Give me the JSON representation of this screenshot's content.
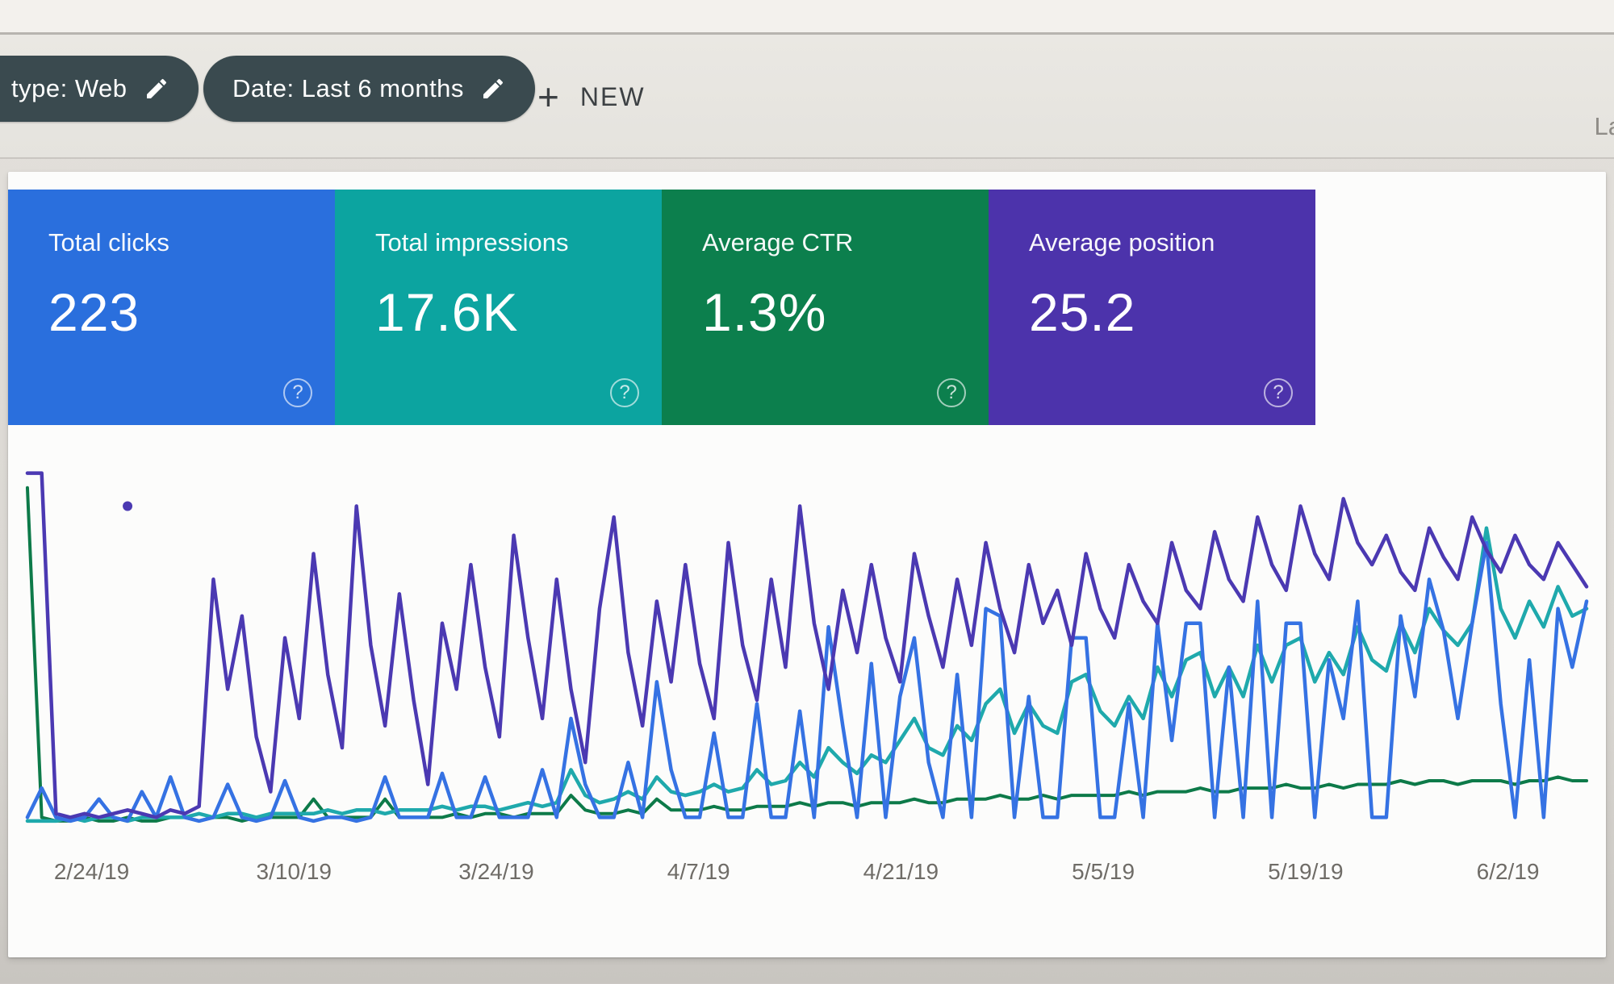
{
  "ui": {
    "plus_glyph": "+",
    "help_glyph": "?"
  },
  "filter_bar": {
    "chips": [
      {
        "label": "type: Web"
      },
      {
        "label": "Date: Last 6 months"
      }
    ],
    "new_button_label": "NEW",
    "right_truncated_text": "La"
  },
  "summary_cards": [
    {
      "id": "total-clicks",
      "label": "Total clicks",
      "value": "223",
      "color": "#2a6fdd"
    },
    {
      "id": "total-impressions",
      "label": "Total impressions",
      "value": "17.6K",
      "color": "#0ca4a0"
    },
    {
      "id": "average-ctr",
      "label": "Average CTR",
      "value": "1.3%",
      "color": "#0c7f4d"
    },
    {
      "id": "average-position",
      "label": "Average position",
      "value": "25.2",
      "color": "#4c33ab"
    }
  ],
  "chart_data": {
    "type": "line",
    "title": "Search performance over time (no visible y-axis; values are % of plot height, estimated)",
    "xlabel": "",
    "ylabel": "",
    "y_axis": "hidden",
    "value_units": "percent_of_plot_height",
    "x_total_days": 110,
    "x_tick_day_index": [
      5,
      19,
      33,
      47,
      61,
      75,
      89,
      103
    ],
    "x_tick_labels": [
      "2/24/19",
      "3/10/19",
      "3/24/19",
      "4/7/19",
      "4/21/19",
      "5/5/19",
      "5/19/19",
      "6/2/19"
    ],
    "legend": "hidden",
    "grid": "off",
    "series": [
      {
        "name": "Clicks",
        "color": "#3572e3",
        "width": 4.5,
        "values": [
          3,
          11,
          3,
          2,
          3,
          8,
          3,
          2,
          10,
          3,
          14,
          3,
          2,
          3,
          12,
          3,
          2,
          3,
          13,
          3,
          2,
          3,
          3,
          2,
          3,
          14,
          3,
          3,
          3,
          15,
          3,
          3,
          14,
          3,
          3,
          3,
          16,
          3,
          30,
          12,
          3,
          3,
          18,
          3,
          40,
          16,
          3,
          3,
          26,
          3,
          3,
          34,
          3,
          3,
          32,
          3,
          55,
          28,
          3,
          45,
          3,
          36,
          52,
          18,
          3,
          42,
          3,
          60,
          58,
          3,
          36,
          3,
          3,
          52,
          52,
          3,
          3,
          34,
          3,
          56,
          24,
          56,
          56,
          3,
          44,
          3,
          62,
          3,
          56,
          56,
          3,
          46,
          30,
          62,
          3,
          3,
          58,
          36,
          68,
          54,
          30,
          56,
          78,
          34,
          3,
          46,
          3,
          60,
          44,
          62
        ]
      },
      {
        "name": "Impressions",
        "color": "#1fa9ac",
        "width": 4.5,
        "values": [
          2,
          2,
          2,
          3,
          2,
          3,
          3,
          2,
          3,
          3,
          3,
          3,
          4,
          3,
          4,
          4,
          3,
          4,
          4,
          4,
          4,
          5,
          4,
          5,
          5,
          4,
          5,
          5,
          5,
          6,
          5,
          6,
          6,
          5,
          6,
          7,
          6,
          7,
          16,
          9,
          7,
          8,
          10,
          8,
          14,
          10,
          9,
          10,
          12,
          10,
          11,
          16,
          12,
          13,
          18,
          14,
          22,
          18,
          15,
          20,
          18,
          24,
          30,
          22,
          20,
          28,
          24,
          34,
          38,
          26,
          34,
          28,
          26,
          40,
          42,
          32,
          28,
          36,
          30,
          44,
          36,
          46,
          48,
          36,
          44,
          36,
          50,
          40,
          50,
          52,
          40,
          48,
          42,
          55,
          46,
          43,
          56,
          48,
          60,
          54,
          50,
          56,
          82,
          60,
          52,
          62,
          55,
          66,
          58,
          60
        ]
      },
      {
        "name": "CTR",
        "color": "#0d7a49",
        "width": 4,
        "values": [
          93,
          3,
          2,
          2,
          3,
          2,
          2,
          3,
          2,
          2,
          3,
          3,
          2,
          3,
          3,
          2,
          3,
          3,
          3,
          3,
          8,
          3,
          3,
          3,
          3,
          8,
          3,
          3,
          3,
          3,
          4,
          3,
          4,
          4,
          3,
          4,
          4,
          4,
          9,
          5,
          4,
          4,
          5,
          4,
          8,
          5,
          5,
          5,
          6,
          5,
          5,
          6,
          6,
          6,
          7,
          6,
          7,
          7,
          6,
          7,
          7,
          7,
          8,
          7,
          7,
          8,
          8,
          8,
          9,
          8,
          8,
          9,
          8,
          9,
          9,
          9,
          9,
          10,
          9,
          10,
          10,
          10,
          11,
          10,
          10,
          11,
          11,
          11,
          12,
          11,
          11,
          12,
          11,
          12,
          12,
          12,
          13,
          12,
          13,
          13,
          12,
          13,
          13,
          13,
          12,
          13,
          13,
          14,
          13,
          13
        ]
      },
      {
        "name": "Position",
        "color": "#4b39b2",
        "width": 4.5,
        "values": [
          97,
          97,
          4,
          3,
          4,
          3,
          4,
          5,
          4,
          3,
          5,
          4,
          6,
          68,
          38,
          58,
          25,
          10,
          52,
          30,
          75,
          42,
          22,
          88,
          50,
          28,
          64,
          35,
          12,
          56,
          38,
          72,
          44,
          25,
          80,
          52,
          30,
          68,
          38,
          18,
          60,
          85,
          48,
          28,
          62,
          40,
          72,
          45,
          30,
          78,
          50,
          35,
          68,
          44,
          88,
          56,
          38,
          65,
          48,
          72,
          52,
          40,
          75,
          58,
          44,
          68,
          50,
          78,
          60,
          48,
          72,
          56,
          65,
          50,
          75,
          60,
          52,
          72,
          62,
          56,
          78,
          65,
          60,
          81,
          68,
          62,
          85,
          72,
          65,
          88,
          75,
          68,
          90,
          78,
          72,
          80,
          70,
          65,
          82,
          74,
          68,
          85,
          76,
          70,
          80,
          72,
          68,
          78,
          72,
          66
        ],
        "isolated_points": [
          {
            "x_index": 7,
            "value": 88
          }
        ]
      }
    ]
  }
}
